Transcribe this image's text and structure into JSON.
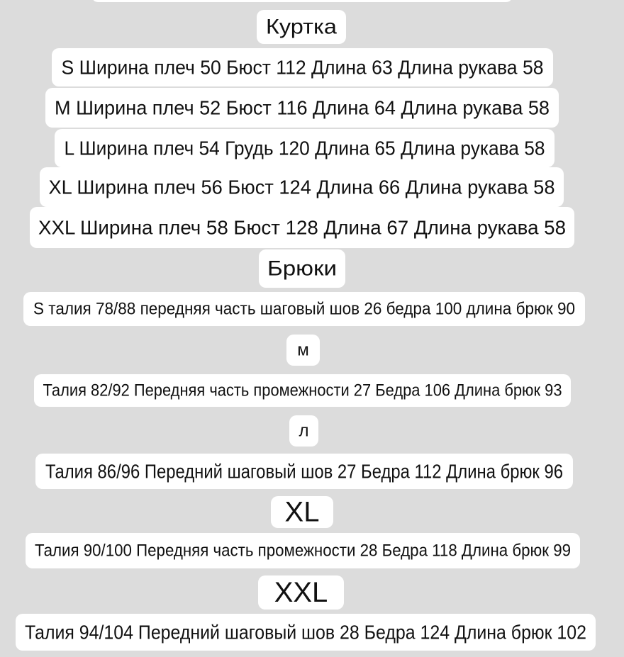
{
  "lines": [
    "Куртка",
    "S Ширина плеч 50 Бюст 112 Длина 63 Длина рукава 58",
    "M Ширина плеч 52 Бюст 116 Длина 64 Длина рукава 58",
    "L Ширина плеч 54 Грудь 120 Длина 65 Длина рукава 58",
    "XL Ширина плеч 56 Бюст 124 Длина 66 Длина рукава 58",
    "XXL Ширина плеч 58 Бюст 128 Длина 67 Длина рукава 58",
    "Брюки",
    "S талия 78/88 передняя часть шаговый шов 26 бедра 100 длина брюк 90",
    "м",
    "Талия 82/92 Передняя часть промежности 27 Бедра 106 Длина брюк 93",
    "л",
    "Талия 86/96 Передний шаговый шов 27 Бедра 112 Длина брюк 96",
    "XL",
    "Талия 90/100 Передняя часть промежности 28 Бедра 118 Длина брюк 99",
    "XXL",
    "Талия 94/104 Передний шаговый шов 28 Бедра 124 Длина брюк 102"
  ]
}
